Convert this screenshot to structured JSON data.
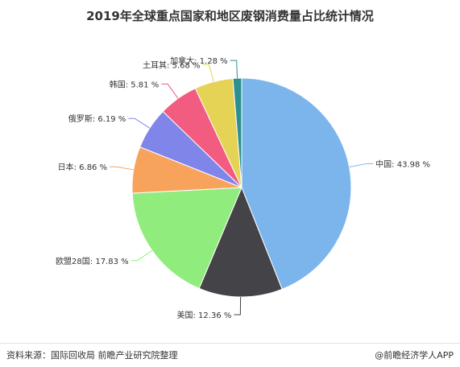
{
  "chart_data": {
    "type": "pie",
    "title": "2019年全球重点国家和地区废钢消费量占比统计情况",
    "slices": [
      {
        "label": "中国",
        "value": 43.98,
        "display": "中国: 43.98 %",
        "color": "#7cb5ec"
      },
      {
        "label": "美国",
        "value": 12.36,
        "display": "美国: 12.36 %",
        "color": "#434348"
      },
      {
        "label": "欧盟28国",
        "value": 17.83,
        "display": "欧盟28国: 17.83 %",
        "color": "#90ed7d"
      },
      {
        "label": "日本",
        "value": 6.86,
        "display": "日本: 6.86 %",
        "color": "#f7a35c"
      },
      {
        "label": "俄罗斯",
        "value": 6.19,
        "display": "俄罗斯: 6.19 %",
        "color": "#8085e9"
      },
      {
        "label": "韩国",
        "value": 5.81,
        "display": "韩国: 5.81 %",
        "color": "#f15c80"
      },
      {
        "label": "土耳其",
        "value": 5.68,
        "display": "土耳其: 5.68 %",
        "color": "#e4d354"
      },
      {
        "label": "加拿大",
        "value": 1.28,
        "display": "加拿大: 1.28 %",
        "color": "#2b908f"
      }
    ]
  },
  "footer": {
    "source": "资料来源：国际回收局 前瞻产业研究院整理",
    "brand": "@前瞻经济学人APP"
  }
}
